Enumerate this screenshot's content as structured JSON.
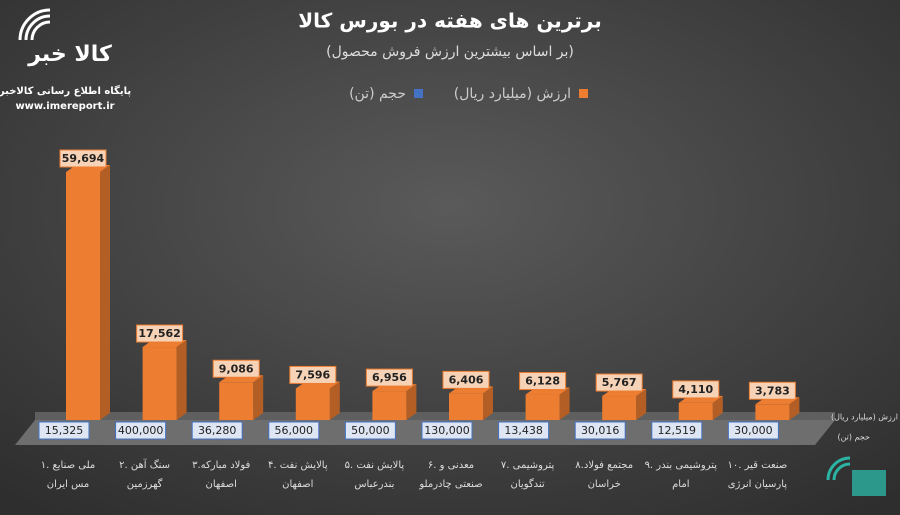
{
  "chart_data": {
    "type": "bar3d",
    "title": "برترین های هفته در بورس کالا",
    "subtitle": "(بر اساس بیشترین ارزش فروش محصول)",
    "logo": {
      "mark": "کالا خبر",
      "tagline": "پایگاه اطلاع رسانی کالاخبر",
      "url": "www.imereport.ir"
    },
    "categories": [
      [
        "۱. ملی صنایع",
        "مس ایران"
      ],
      [
        "۲. سنگ آهن",
        "گهرزمین"
      ],
      [
        "۳.فولاد مبارکه",
        "اصفهان"
      ],
      [
        "۴. پالایش نفت",
        "اصفهان"
      ],
      [
        "۵. پالایش نفت",
        "بندرعباس"
      ],
      [
        "۶. معدنی و",
        "صنعتی چادرملو"
      ],
      [
        "۷. پتروشیمی",
        "تندگویان"
      ],
      [
        "۸.مجتمع فولاد",
        "خراسان"
      ],
      [
        "۹. پتروشیمی بندر",
        "امام"
      ],
      [
        "۱۰. صنعت قیر",
        "پارسیان انرژی"
      ]
    ],
    "series": [
      {
        "name": "ارزش (میلیارد ریال)",
        "color": "#ed7d31",
        "values": [
          59694,
          17562,
          9086,
          7596,
          6956,
          6406,
          6128,
          5767,
          4110,
          3783
        ],
        "value_labels": [
          "59,694",
          "17,562",
          "9,086",
          "7,596",
          "6,956",
          "6,406",
          "6,128",
          "5,767",
          "4,110",
          "3,783"
        ]
      },
      {
        "name": "حجم (تن)",
        "color": "#4472c4",
        "values": [
          15325,
          400000,
          36280,
          56000,
          50000,
          130000,
          13438,
          30016,
          12519,
          30000
        ],
        "value_labels": [
          "15,325",
          "400,000",
          "36,280",
          "56,000",
          "50,000",
          "130,000",
          "13,438",
          "30,016",
          "12,519",
          "30,000"
        ]
      }
    ],
    "legend": "top"
  }
}
